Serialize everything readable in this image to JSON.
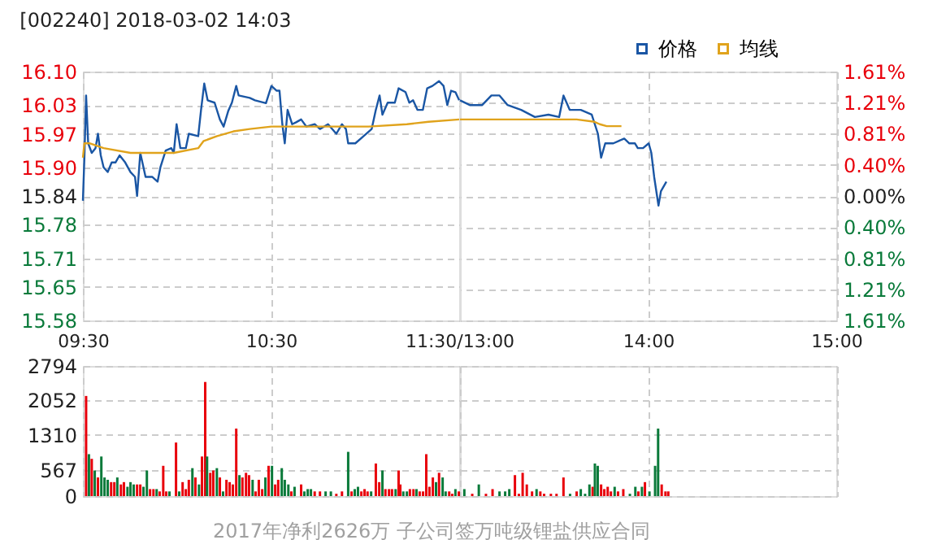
{
  "chart_data": [
    {
      "type": "line",
      "title": "[002240] 2018-03-02 14:03",
      "xlim": [
        9.5,
        11.5
      ],
      "xticks": [
        {
          "value": 9.5,
          "label": "09:30"
        },
        {
          "value": 10.5,
          "label": "10:30"
        },
        {
          "value": 11.5,
          "label": "11:30/13:00"
        }
      ],
      "ylim": [
        15.58,
        16.1
      ],
      "yticks": [
        15.58,
        15.65,
        15.71,
        15.78,
        15.84,
        {
          "value": 15.9,
          "label": "15.90"
        },
        15.97,
        16.03,
        {
          "value": 16.1,
          "label": "16.10"
        }
      ],
      "grid": true,
      "legend": "top right",
      "series": [
        {
          "name": "价格",
          "color": "#1a56a4",
          "x": [
            9.5,
            9.508,
            9.517,
            9.528,
            9.547,
            9.567,
            9.58,
            9.595,
            9.61,
            9.632,
            9.653,
            9.673,
            9.695,
            9.725,
            9.753,
            9.777,
            9.788,
            9.805,
            9.833,
            9.868,
            9.897,
            9.912,
            9.94,
            9.97,
            9.983,
            9.998,
            10.018,
            10.047,
            10.063,
            10.113,
            10.128,
            10.145,
            10.163,
            10.2,
            10.228,
            10.248,
            10.272,
            10.292,
            10.315,
            10.328,
            10.387,
            10.415,
            10.473,
            10.502,
            10.53,
            10.545,
            10.56,
            10.573,
            10.588,
            10.612,
            10.633,
            10.66,
            10.688,
            10.732,
            10.76,
            10.803,
            10.847,
            10.877,
            10.898,
            10.91,
            10.948,
            10.992,
            11.035,
            11.057,
            11.077,
            11.092,
            11.12,
            11.158,
            11.178,
            11.215,
            11.235,
            11.255,
            11.278,
            11.307,
            11.33,
            11.358,
            11.393,
            11.417,
            11.437,
            11.457,
            11.48,
            11.5
          ],
          "values": [
            15.83,
            15.92,
            16.05,
            15.95,
            15.93,
            15.94,
            15.97,
            15.925,
            15.9,
            15.89,
            15.91,
            15.91,
            15.925,
            15.91,
            15.89,
            15.88,
            15.84,
            15.93,
            15.88,
            15.88,
            15.87,
            15.9,
            15.935,
            15.94,
            15.93,
            15.99,
            15.94,
            15.94,
            15.97,
            15.965,
            16.02,
            16.075,
            16.04,
            16.035,
            16.0,
            15.985,
            16.017,
            16.035,
            16.07,
            16.05,
            16.045,
            16.04,
            16.034,
            16.07,
            16.06,
            16.06,
            15.99,
            15.95,
            16.02,
            15.99,
            15.994,
            16.0,
            15.985,
            15.99,
            15.98,
            15.99,
            15.97,
            15.99,
            15.98,
            15.95,
            15.95,
            15.965,
            15.98,
            16.02,
            16.05,
            16.01,
            16.035,
            16.035,
            16.065,
            16.057,
            16.035,
            16.04,
            16.02,
            16.02,
            16.065,
            16.07,
            16.08,
            16.07,
            16.03,
            16.06,
            16.057,
            16.04
          ]
        },
        {
          "name": "均线",
          "color": "#e0a31c",
          "x": [
            9.5,
            9.508,
            9.538,
            9.61,
            9.753,
            9.868,
            9.983,
            10.113,
            10.142,
            10.213,
            10.3,
            10.387,
            10.502,
            10.76,
            11.02,
            11.222,
            11.337,
            11.5
          ],
          "values": [
            15.92,
            15.95,
            15.95,
            15.94,
            15.93,
            15.93,
            15.93,
            15.94,
            15.955,
            15.965,
            15.975,
            15.98,
            15.985,
            15.985,
            15.985,
            15.99,
            15.995,
            16.0
          ]
        }
      ]
    },
    {
      "type": "line",
      "xlim": [
        13,
        15
      ],
      "xticks": [
        {
          "value": 14,
          "label": "14:00"
        },
        {
          "value": 15,
          "label": "15:00"
        }
      ],
      "ylim": [
        15.58,
        16.1
      ],
      "yticks": [
        15.58,
        15.65,
        15.71,
        15.78,
        15.84,
        15.9,
        15.97,
        16.03,
        16.1
      ],
      "y2lim": [
        -1.61,
        1.61
      ],
      "y2ticks": [
        {
          "value": -1.61,
          "label": "1.61%"
        },
        {
          "value": -1.21,
          "label": "1.21%"
        },
        {
          "value": -0.81,
          "label": "0.81%"
        },
        {
          "value": -0.4,
          "label": "0.40%"
        },
        {
          "value": 0,
          "label": "0.00%"
        },
        {
          "value": 0.4,
          "label": "0.40%"
        },
        {
          "value": 0.81,
          "label": "0.81%"
        },
        {
          "value": 1.21,
          "label": "1.21%"
        },
        {
          "value": 1.61,
          "label": "1.61%"
        }
      ],
      "grid": true,
      "tick_labels": "x",
      "series": [
        {
          "color": "#1a56a4",
          "x": [
            13,
            13.052,
            13.118,
            13.167,
            13.21,
            13.253,
            13.325,
            13.398,
            13.47,
            13.527,
            13.55,
            13.583,
            13.642,
            13.7,
            13.733,
            13.75,
            13.772,
            13.815,
            13.873,
            13.9,
            13.93,
            13.945,
            13.973,
            14.003,
            14.017,
            14.032,
            14.055,
            14.068,
            14.097
          ],
          "values": [
            16.04,
            16.03,
            16.03,
            16.05,
            16.05,
            16.03,
            16.02,
            16.005,
            16.01,
            16.005,
            16.05,
            16.02,
            16.02,
            16.01,
            15.97,
            15.92,
            15.95,
            15.95,
            15.96,
            15.95,
            15.95,
            15.94,
            15.94,
            15.95,
            15.93,
            15.88,
            15.82,
            15.85,
            15.87
          ]
        },
        {
          "color": "#e0a31c",
          "x": [
            13,
            13.118,
            13.62,
            13.715,
            13.743,
            13.78,
            13.858
          ],
          "values": [
            16.0,
            16.0,
            16.0,
            15.995,
            15.99,
            15.986,
            15.986
          ]
        }
      ]
    },
    {
      "type": "bar",
      "xlim": [
        9.5,
        11.5
      ],
      "xticks": [
        9.5,
        10.5,
        11.5
      ],
      "ylim": [
        0,
        2794
      ],
      "yticks": [
        0,
        567,
        1310,
        2052,
        2794
      ],
      "grid": true,
      "tick_labels": "y",
      "annotations": [
        "2017年净利2626万 子公司签万吨级锂盐供应合同"
      ],
      "x": [
        9.517,
        9.532,
        9.547,
        9.563,
        9.58,
        9.598,
        9.615,
        9.632,
        9.65,
        9.667,
        9.683,
        9.702,
        9.718,
        9.737,
        9.753,
        9.77,
        9.788,
        9.805,
        9.822,
        9.84,
        9.857,
        9.875,
        9.892,
        9.908,
        9.927,
        9.943,
        9.96,
        9.995,
        10.012,
        10.03,
        10.047,
        10.063,
        10.082,
        10.098,
        10.117,
        10.133,
        10.15,
        10.16,
        10.177,
        10.193,
        10.212,
        10.228,
        10.245,
        10.263,
        10.28,
        10.297,
        10.315,
        10.332,
        10.348,
        10.367,
        10.383,
        10.402,
        10.418,
        10.435,
        10.453,
        10.47,
        10.487,
        10.505,
        10.522,
        10.538,
        10.557,
        10.573,
        10.592,
        10.608,
        10.625,
        10.66,
        10.677,
        10.695,
        10.712,
        10.732,
        10.76,
        10.79,
        10.818,
        10.847,
        10.877,
        10.91,
        10.928,
        10.945,
        10.962,
        10.98,
        10.997,
        11.013,
        11.032,
        11.057,
        11.075,
        11.092,
        11.108,
        11.127,
        11.143,
        11.162,
        11.178,
        11.187,
        11.203,
        11.222,
        11.238,
        11.257,
        11.273,
        11.29,
        11.308,
        11.325,
        11.342,
        11.36,
        11.377,
        11.393,
        11.412,
        11.428,
        11.447,
        11.463,
        11.48,
        11.498
      ],
      "values": [
        2150,
        900,
        800,
        550,
        400,
        850,
        400,
        350,
        300,
        300,
        400,
        250,
        300,
        200,
        300,
        250,
        250,
        250,
        200,
        550,
        150,
        150,
        150,
        100,
        650,
        100,
        100,
        1150,
        100,
        300,
        150,
        350,
        600,
        400,
        250,
        850,
        2450,
        850,
        500,
        550,
        600,
        400,
        100,
        350,
        300,
        250,
        1450,
        450,
        400,
        500,
        450,
        350,
        100,
        350,
        150,
        400,
        650,
        650,
        250,
        350,
        600,
        350,
        250,
        100,
        200,
        250,
        100,
        150,
        150,
        100,
        100,
        100,
        100,
        50,
        100,
        950,
        100,
        150,
        200,
        100,
        150,
        100,
        100,
        700,
        300,
        550,
        150,
        150,
        150,
        150,
        550,
        250,
        100,
        100,
        150,
        150,
        150,
        100,
        100,
        900,
        200,
        400,
        300,
        500,
        400,
        100,
        100,
        50,
        150,
        100
      ],
      "colors": [
        "#e8000b",
        "#0a7a3a",
        "#e8000b",
        "#0a7a3a",
        "#e8000b",
        "#0a7a3a",
        "#0a7a3a",
        "#0a7a3a",
        "#e8000b",
        "#e8000b",
        "#0a7a3a",
        "#e8000b",
        "#e8000b",
        "#0a7a3a",
        "#0a7a3a",
        "#0a7a3a",
        "#e8000b",
        "#e8000b",
        "#0a7a3a",
        "#0a7a3a",
        "#e8000b",
        "#e8000b",
        "#0a7a3a",
        "#e8000b",
        "#e8000b",
        "#e8000b",
        "#0a7a3a",
        "#e8000b",
        "#0a7a3a",
        "#e8000b",
        "#e8000b",
        "#e8000b",
        "#0a7a3a",
        "#e8000b",
        "#0a7a3a",
        "#e8000b",
        "#e8000b",
        "#0a7a3a",
        "#e8000b",
        "#e8000b",
        "#0a7a3a",
        "#e8000b",
        "#0a7a3a",
        "#e8000b",
        "#e8000b",
        "#e8000b",
        "#e8000b",
        "#0a7a3a",
        "#e8000b",
        "#e8000b",
        "#e8000b",
        "#0a7a3a",
        "#e8000b",
        "#e8000b",
        "#e8000b",
        "#0a7a3a",
        "#e8000b",
        "#0a7a3a",
        "#e8000b",
        "#e8000b",
        "#0a7a3a",
        "#0a7a3a",
        "#0a7a3a",
        "#e8000b",
        "#0a7a3a",
        "#e8000b",
        "#0a7a3a",
        "#0a7a3a",
        "#0a7a3a",
        "#e8000b",
        "#e8000b",
        "#0a7a3a",
        "#0a7a3a",
        "#e8000b",
        "#e8000b",
        "#0a7a3a",
        "#e8000b",
        "#0a7a3a",
        "#0a7a3a",
        "#e8000b",
        "#e8000b",
        "#e8000b",
        "#0a7a3a",
        "#e8000b",
        "#e8000b",
        "#0a7a3a",
        "#e8000b",
        "#e8000b",
        "#e8000b",
        "#0a7a3a",
        "#e8000b",
        "#e8000b",
        "#0a7a3a",
        "#0a7a3a",
        "#e8000b",
        "#e8000b",
        "#0a7a3a",
        "#e8000b",
        "#e8000b",
        "#e8000b",
        "#e8000b",
        "#e8000b",
        "#0a7a3a",
        "#e8000b",
        "#0a7a3a",
        "#0a7a3a",
        "#e8000b",
        "#e8000b",
        "#0a7a3a",
        "#e8000b"
      ]
    },
    {
      "type": "bar",
      "xlim": [
        13,
        15
      ],
      "xticks": [
        13,
        14,
        15
      ],
      "ylim": [
        0,
        2794
      ],
      "yticks": [
        0,
        567,
        1310,
        2052,
        2794
      ],
      "grid": true,
      "tick_labels": false,
      "x": [
        13.023,
        13.065,
        13.1,
        13.138,
        13.173,
        13.21,
        13.24,
        13.262,
        13.292,
        13.313,
        13.333,
        13.355,
        13.383,
        13.407,
        13.427,
        13.447,
        13.483,
        13.513,
        13.55,
        13.585,
        13.62,
        13.642,
        13.665,
        13.688,
        13.705,
        13.717,
        13.732,
        13.75,
        13.767,
        13.785,
        13.802,
        13.822,
        13.84,
        13.868,
        13.903,
        13.932,
        13.948,
        13.967,
        13.983,
        14.007,
        14.037,
        14.053,
        14.072,
        14.092,
        14.107
      ],
      "values": [
        150,
        50,
        250,
        50,
        150,
        100,
        100,
        150,
        450,
        50,
        500,
        250,
        100,
        150,
        100,
        50,
        50,
        50,
        400,
        50,
        100,
        150,
        50,
        250,
        200,
        700,
        650,
        250,
        150,
        200,
        100,
        200,
        100,
        150,
        50,
        200,
        100,
        200,
        300,
        100,
        650,
        1450,
        250,
        100,
        100
      ],
      "colors": [
        "#0a7a3a",
        "#e8000b",
        "#0a7a3a",
        "#e8000b",
        "#e8000b",
        "#0a7a3a",
        "#0a7a3a",
        "#0a7a3a",
        "#e8000b",
        "#e8000b",
        "#e8000b",
        "#e8000b",
        "#e8000b",
        "#0a7a3a",
        "#e8000b",
        "#e8000b",
        "#e8000b",
        "#e8000b",
        "#e8000b",
        "#0a7a3a",
        "#e8000b",
        "#0a7a3a",
        "#0a7a3a",
        "#0a7a3a",
        "#e8000b",
        "#0a7a3a",
        "#0a7a3a",
        "#e8000b",
        "#e8000b",
        "#e8000b",
        "#e8000b",
        "#0a7a3a",
        "#e8000b",
        "#e8000b",
        "#0a7a3a",
        "#0a7a3a",
        "#e8000b",
        "#0a7a3a",
        "#e8000b",
        "#0a7a3a",
        "#0a7a3a",
        "#0a7a3a",
        "#e8000b",
        "#e8000b",
        "#e8000b"
      ]
    }
  ]
}
